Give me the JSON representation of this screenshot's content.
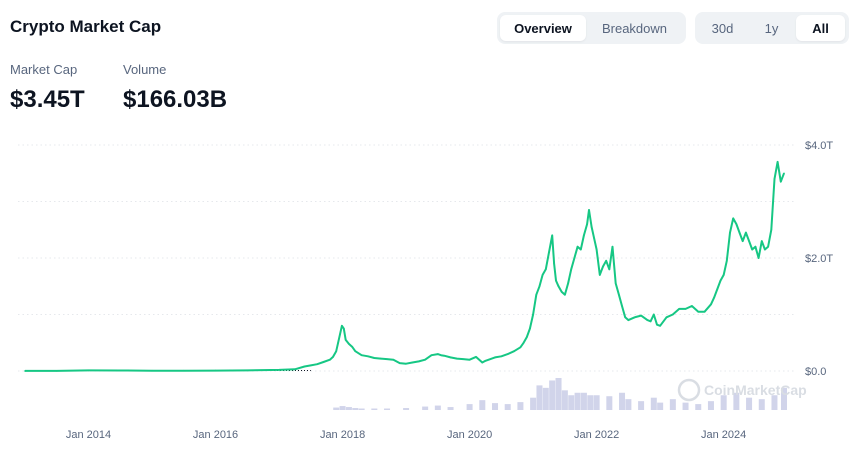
{
  "header": {
    "title": "Crypto Market Cap",
    "view_tabs": [
      "Overview",
      "Breakdown"
    ],
    "active_view": "Overview",
    "range_tabs": [
      "30d",
      "1y",
      "All"
    ],
    "active_range": "All"
  },
  "stats": {
    "market_cap_label": "Market Cap",
    "market_cap_value": "$3.45T",
    "volume_label": "Volume",
    "volume_value": "$166.03B"
  },
  "watermark": "CoinMarketCap",
  "colors": {
    "line": "#16c784",
    "volume": "#c9cde6",
    "grid": "#e6e8ec",
    "text_muted": "#58667e"
  },
  "chart_data": {
    "type": "line",
    "title": "",
    "xlabel": "",
    "ylabel": "",
    "x_tick_labels": [
      "Jan 2014",
      "Jan 2016",
      "Jan 2018",
      "Jan 2020",
      "Jan 2022",
      "Jan 2024"
    ],
    "x_ticks": [
      2014.0,
      2016.0,
      2018.0,
      2020.0,
      2022.0,
      2024.0
    ],
    "y_tick_labels": [
      "$0.0",
      "$2.0T",
      "$4.0T"
    ],
    "y_ticks": [
      0,
      2,
      4
    ],
    "y_unit": "trillion USD",
    "xlim": [
      2013.0,
      2024.95
    ],
    "ylim": [
      0,
      4
    ],
    "grid": true,
    "series": [
      {
        "x": [
          2013.0,
          2013.5,
          2014.0,
          2014.5,
          2015.0,
          2015.5,
          2016.0,
          2016.5,
          2017.0,
          2017.25,
          2017.4,
          2017.5,
          2017.6,
          2017.7,
          2017.8,
          2017.85,
          2017.9,
          2017.93,
          2017.96,
          2017.99,
          2018.02,
          2018.05,
          2018.1,
          2018.15,
          2018.2,
          2018.3,
          2018.4,
          2018.5,
          2018.6,
          2018.7,
          2018.8,
          2018.9,
          2019.0,
          2019.1,
          2019.2,
          2019.3,
          2019.4,
          2019.5,
          2019.55,
          2019.6,
          2019.7,
          2019.8,
          2019.9,
          2020.0,
          2020.1,
          2020.2,
          2020.25,
          2020.3,
          2020.4,
          2020.5,
          2020.6,
          2020.7,
          2020.8,
          2020.85,
          2020.9,
          2020.95,
          2021.0,
          2021.05,
          2021.1,
          2021.15,
          2021.2,
          2021.25,
          2021.3,
          2021.33,
          2021.36,
          2021.4,
          2021.45,
          2021.5,
          2021.55,
          2021.6,
          2021.65,
          2021.7,
          2021.75,
          2021.8,
          2021.85,
          2021.88,
          2021.92,
          2021.96,
          2022.0,
          2022.05,
          2022.1,
          2022.15,
          2022.2,
          2022.25,
          2022.3,
          2022.35,
          2022.4,
          2022.45,
          2022.5,
          2022.6,
          2022.7,
          2022.8,
          2022.85,
          2022.9,
          2022.95,
          2023.0,
          2023.1,
          2023.2,
          2023.3,
          2023.4,
          2023.5,
          2023.6,
          2023.7,
          2023.8,
          2023.85,
          2023.9,
          2023.95,
          2024.0,
          2024.05,
          2024.1,
          2024.15,
          2024.2,
          2024.25,
          2024.3,
          2024.35,
          2024.4,
          2024.45,
          2024.5,
          2024.55,
          2024.6,
          2024.65,
          2024.7,
          2024.75,
          2024.8,
          2024.85,
          2024.9,
          2024.95
        ],
        "y": [
          0.001,
          0.002,
          0.01,
          0.008,
          0.006,
          0.005,
          0.007,
          0.01,
          0.02,
          0.03,
          0.08,
          0.1,
          0.12,
          0.16,
          0.2,
          0.25,
          0.35,
          0.5,
          0.65,
          0.8,
          0.75,
          0.55,
          0.48,
          0.43,
          0.35,
          0.28,
          0.26,
          0.23,
          0.22,
          0.21,
          0.2,
          0.14,
          0.13,
          0.15,
          0.17,
          0.2,
          0.28,
          0.3,
          0.28,
          0.27,
          0.24,
          0.22,
          0.21,
          0.2,
          0.25,
          0.15,
          0.18,
          0.2,
          0.24,
          0.26,
          0.3,
          0.35,
          0.42,
          0.5,
          0.6,
          0.75,
          1.0,
          1.35,
          1.5,
          1.7,
          1.8,
          2.1,
          2.4,
          1.9,
          1.6,
          1.5,
          1.4,
          1.35,
          1.55,
          1.8,
          2.0,
          2.2,
          2.15,
          2.4,
          2.6,
          2.85,
          2.55,
          2.35,
          2.15,
          1.7,
          1.85,
          1.95,
          1.8,
          2.2,
          1.55,
          1.35,
          1.15,
          0.95,
          0.9,
          0.95,
          0.98,
          0.9,
          0.88,
          1.0,
          0.82,
          0.8,
          0.95,
          1.0,
          1.1,
          1.1,
          1.15,
          1.05,
          1.05,
          1.18,
          1.3,
          1.45,
          1.6,
          1.7,
          1.95,
          2.45,
          2.7,
          2.6,
          2.45,
          2.3,
          2.45,
          2.3,
          2.15,
          2.2,
          2.0,
          2.3,
          2.15,
          2.2,
          2.5,
          3.4,
          3.7,
          3.35,
          3.5
        ]
      }
    ],
    "volume_series": {
      "x": [
        2017.9,
        2018.0,
        2018.1,
        2018.2,
        2018.3,
        2018.5,
        2018.7,
        2019.0,
        2019.3,
        2019.5,
        2019.7,
        2020.0,
        2020.2,
        2020.4,
        2020.6,
        2020.8,
        2021.0,
        2021.1,
        2021.2,
        2021.3,
        2021.4,
        2021.5,
        2021.6,
        2021.7,
        2021.8,
        2021.9,
        2022.0,
        2022.2,
        2022.4,
        2022.5,
        2022.7,
        2022.9,
        2023.0,
        2023.2,
        2023.4,
        2023.6,
        2023.8,
        2024.0,
        2024.2,
        2024.4,
        2024.6,
        2024.8,
        2024.95
      ],
      "values": [
        0.05,
        0.08,
        0.06,
        0.04,
        0.03,
        0.03,
        0.03,
        0.04,
        0.07,
        0.09,
        0.06,
        0.12,
        0.2,
        0.14,
        0.12,
        0.16,
        0.25,
        0.5,
        0.45,
        0.6,
        0.65,
        0.4,
        0.3,
        0.35,
        0.35,
        0.3,
        0.3,
        0.28,
        0.35,
        0.22,
        0.18,
        0.25,
        0.15,
        0.22,
        0.15,
        0.12,
        0.18,
        0.3,
        0.35,
        0.25,
        0.22,
        0.3,
        0.45
      ]
    }
  }
}
